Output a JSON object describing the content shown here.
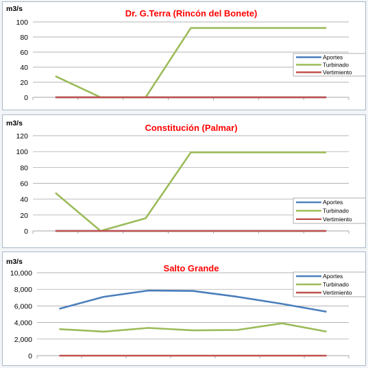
{
  "chart_data": [
    {
      "type": "line",
      "title": "Dr. G.Terra (Rincón del Bonete)",
      "ylabel": "m3/s",
      "ylim": [
        0,
        100
      ],
      "yticks": [
        0,
        20,
        40,
        60,
        80,
        100
      ],
      "ytick_labels": [
        "0",
        "20",
        "40",
        "60",
        "80",
        "100"
      ],
      "x": [
        1,
        2,
        3,
        4,
        5,
        6,
        7
      ],
      "grid": true,
      "legend_position": "right",
      "series": [
        {
          "name": "Aportes",
          "color": "#4a7ebb",
          "values": [
            0,
            0,
            0,
            0,
            0,
            0,
            0
          ]
        },
        {
          "name": "Turbinado",
          "color": "#9bbb59",
          "values": [
            28,
            0,
            0,
            92,
            92,
            92,
            92
          ]
        },
        {
          "name": "Vertimiento",
          "color": "#c0504d",
          "values": [
            0,
            0,
            0,
            0,
            0,
            0,
            0
          ]
        }
      ]
    },
    {
      "type": "line",
      "title": "Constitución (Palmar)",
      "ylabel": "m3/s",
      "ylim": [
        0,
        120
      ],
      "yticks": [
        0,
        20,
        40,
        60,
        80,
        100,
        120
      ],
      "ytick_labels": [
        "0",
        "20",
        "40",
        "60",
        "80",
        "100",
        "120"
      ],
      "x": [
        1,
        2,
        3,
        4,
        5,
        6,
        7
      ],
      "grid": true,
      "legend_position": "right",
      "series": [
        {
          "name": "Aportes",
          "color": "#4a7ebb",
          "values": [
            0,
            0,
            0,
            0,
            0,
            0,
            0
          ]
        },
        {
          "name": "Turbinado",
          "color": "#9bbb59",
          "values": [
            48,
            0,
            16,
            99,
            99,
            99,
            99
          ]
        },
        {
          "name": "Vertimiento",
          "color": "#c0504d",
          "values": [
            0,
            0,
            0,
            0,
            0,
            0,
            0
          ]
        }
      ]
    },
    {
      "type": "line",
      "title": "Salto Grande",
      "ylabel": "m3/s",
      "ylim": [
        0,
        10000
      ],
      "yticks": [
        0,
        2000,
        4000,
        6000,
        8000,
        10000
      ],
      "ytick_labels": [
        "0",
        "2,000",
        "4,000",
        "6,000",
        "8,000",
        "10,000"
      ],
      "x": [
        1,
        2,
        3,
        4,
        5,
        6,
        7
      ],
      "grid": true,
      "legend_position": "top-right",
      "series": [
        {
          "name": "Aportes",
          "color": "#4a7ebb",
          "values": [
            5650,
            7100,
            7850,
            7800,
            7100,
            6250,
            5300
          ]
        },
        {
          "name": "Turbinado",
          "color": "#9bbb59",
          "values": [
            3200,
            2900,
            3350,
            3050,
            3100,
            3900,
            2900
          ]
        },
        {
          "name": "Vertimiento",
          "color": "#c0504d",
          "values": [
            0,
            0,
            0,
            0,
            0,
            0,
            0
          ]
        }
      ]
    }
  ]
}
